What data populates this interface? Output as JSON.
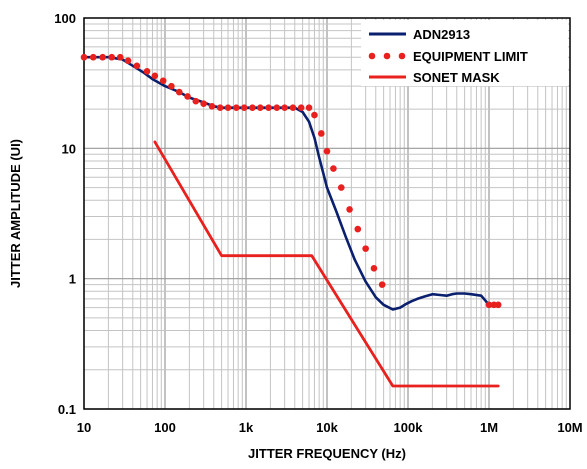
{
  "chart_data": {
    "type": "line",
    "title": "",
    "xlabel": "JITTER FREQUENCY (Hz)",
    "ylabel": "JITTER AMPLITUDE (UI)",
    "x_scale": "log",
    "y_scale": "log",
    "xlim": [
      10,
      10000000
    ],
    "ylim": [
      0.1,
      100
    ],
    "grid": true,
    "legend_position": "top-right",
    "x_ticks": [
      {
        "value": 10,
        "label": "10"
      },
      {
        "value": 100,
        "label": "100"
      },
      {
        "value": 1000,
        "label": "1k"
      },
      {
        "value": 10000,
        "label": "10k"
      },
      {
        "value": 100000,
        "label": "100k"
      },
      {
        "value": 1000000,
        "label": "1M"
      },
      {
        "value": 10000000,
        "label": "10M"
      }
    ],
    "y_ticks": [
      {
        "value": 0.1,
        "label": "0.1"
      },
      {
        "value": 1,
        "label": "1"
      },
      {
        "value": 10,
        "label": "10"
      },
      {
        "value": 100,
        "label": "100"
      }
    ],
    "series": [
      {
        "name": "ADN2913",
        "color": "#0a1f6e",
        "style": "solid",
        "x": [
          10,
          20,
          30,
          40,
          55,
          70,
          100,
          150,
          200,
          300,
          400,
          500,
          1000,
          2000,
          3000,
          4000,
          5000,
          6000,
          7000,
          8000,
          10000,
          13000,
          17000,
          22000,
          30000,
          40000,
          50000,
          65000,
          80000,
          95000,
          110000,
          130000,
          160000,
          200000,
          250000,
          300000,
          350000,
          400000,
          500000,
          600000,
          800000,
          1000000
        ],
        "y": [
          50,
          50,
          48,
          43,
          38,
          34,
          30,
          27,
          24.5,
          22.5,
          21,
          20.5,
          20.5,
          20.5,
          20.5,
          20.5,
          19,
          16,
          12,
          8.5,
          5,
          3.3,
          2.1,
          1.4,
          0.95,
          0.72,
          0.63,
          0.58,
          0.6,
          0.64,
          0.67,
          0.7,
          0.73,
          0.76,
          0.75,
          0.74,
          0.76,
          0.77,
          0.77,
          0.76,
          0.74,
          0.63
        ]
      },
      {
        "name": "EQUIPMENT LIMIT",
        "color": "#e8201e",
        "style": "dotted",
        "x": [
          10,
          13,
          17,
          22,
          28,
          35,
          45,
          60,
          75,
          95,
          120,
          150,
          190,
          240,
          300,
          380,
          480,
          600,
          760,
          950,
          1200,
          1500,
          1900,
          2400,
          3000,
          3800,
          4800,
          6000,
          7000,
          8500,
          10000,
          12000,
          15000,
          19000,
          24000,
          30000,
          38000,
          48000,
          1000000,
          1150000,
          1300000
        ],
        "y": [
          50,
          50,
          50,
          50,
          50,
          47,
          43,
          39,
          36,
          33,
          30,
          27,
          25,
          23,
          22,
          21,
          20.5,
          20.5,
          20.5,
          20.5,
          20.5,
          20.5,
          20.5,
          20.5,
          20.5,
          20.5,
          20.5,
          20.5,
          18,
          13,
          9.5,
          7,
          5,
          3.4,
          2.4,
          1.7,
          1.2,
          0.9,
          0.63,
          0.63,
          0.63
        ]
      },
      {
        "name": "SONET MASK",
        "color": "#e8201e",
        "style": "solid",
        "x": [
          75,
          500,
          6500,
          65000,
          1300000
        ],
        "y": [
          11.2,
          1.5,
          1.5,
          0.15,
          0.15
        ]
      }
    ]
  }
}
